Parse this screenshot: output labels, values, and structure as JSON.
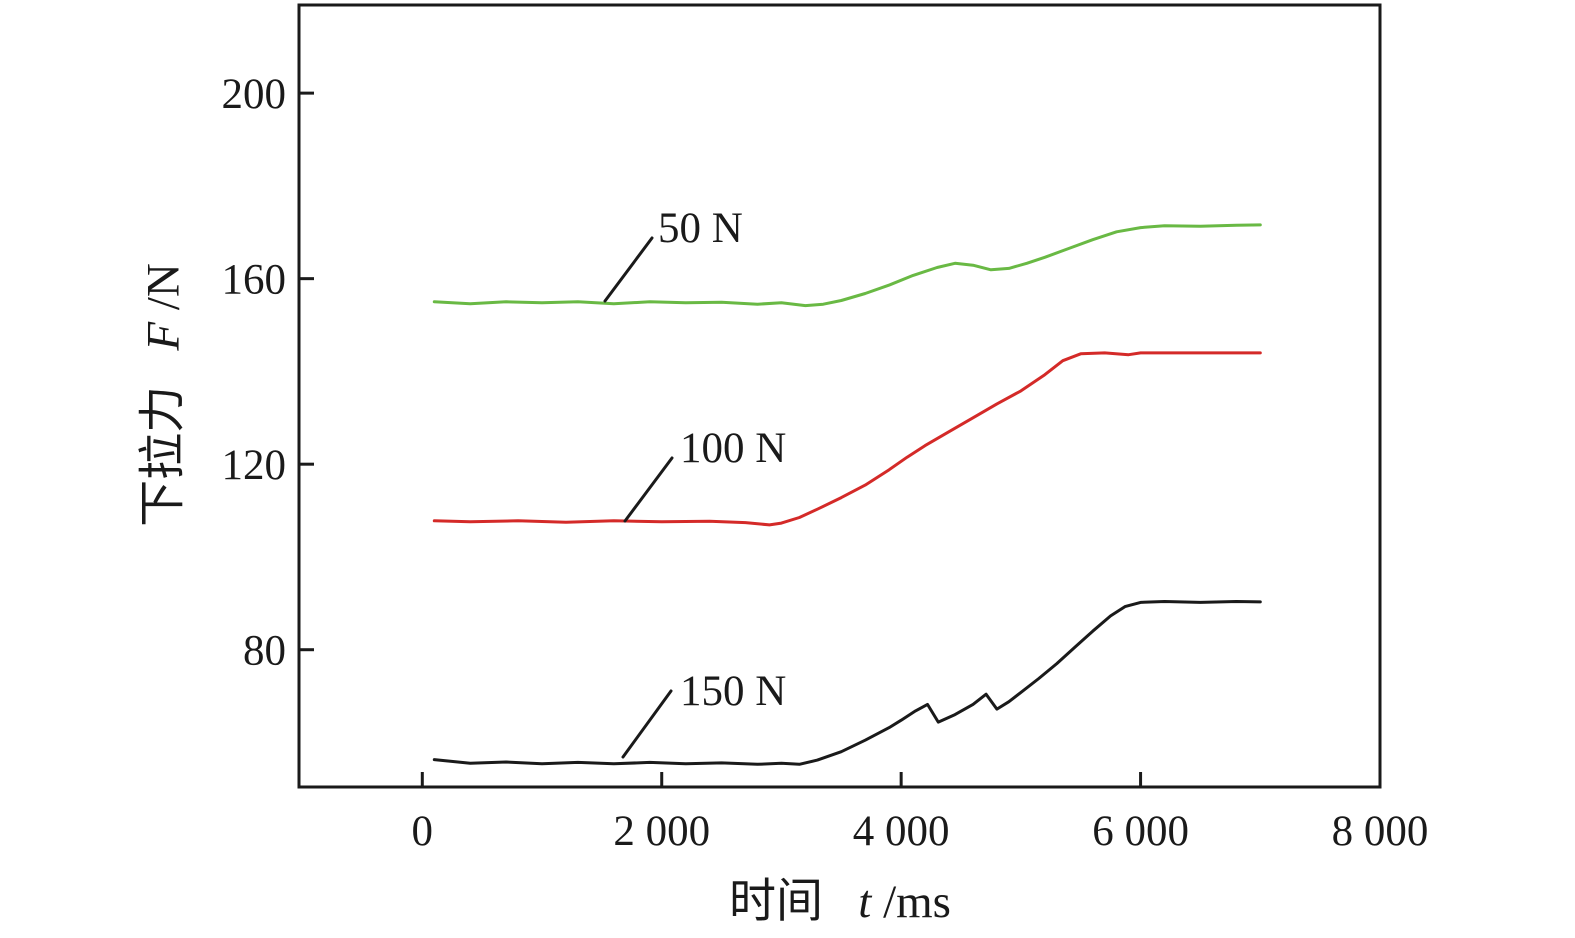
{
  "figure_title": "",
  "x_axis_title": {
    "cn": "时间",
    "var": "t",
    "unit": "/ms"
  },
  "y_axis_title": {
    "cn": "下拉力",
    "var": "F",
    "unit": "/N"
  },
  "colors": {
    "axis": "#1a1a1a",
    "green_series": "#69b944",
    "red_series": "#d42a28",
    "black_series": "#1a1a1a"
  },
  "chart_data": {
    "type": "line",
    "title": "",
    "xlabel": "时间 t/ms",
    "ylabel": "下拉力 F/N",
    "xlim": [
      -1030,
      8000
    ],
    "ylim": [
      50.4,
      219.0
    ],
    "grid": false,
    "legend_position": "inline-annotations",
    "x_ticks": [
      {
        "value": 0,
        "label": "0"
      },
      {
        "value": 2000,
        "label": "2 000"
      },
      {
        "value": 4000,
        "label": "4 000"
      },
      {
        "value": 6000,
        "label": "6 000"
      },
      {
        "value": 8000,
        "label": "8 000"
      }
    ],
    "y_ticks": [
      {
        "value": 80,
        "label": "80"
      },
      {
        "value": 120,
        "label": "120"
      },
      {
        "value": 160,
        "label": "160"
      },
      {
        "value": 200,
        "label": "200"
      }
    ],
    "series": [
      {
        "name": "50 N",
        "color": "#69b944",
        "points": [
          [
            100,
            155.0
          ],
          [
            400,
            154.6
          ],
          [
            700,
            155.0
          ],
          [
            1000,
            154.8
          ],
          [
            1300,
            155.0
          ],
          [
            1600,
            154.6
          ],
          [
            1900,
            155.0
          ],
          [
            2200,
            154.8
          ],
          [
            2500,
            154.9
          ],
          [
            2800,
            154.5
          ],
          [
            3000,
            154.8
          ],
          [
            3200,
            154.2
          ],
          [
            3350,
            154.5
          ],
          [
            3500,
            155.3
          ],
          [
            3700,
            156.8
          ],
          [
            3900,
            158.6
          ],
          [
            4100,
            160.7
          ],
          [
            4300,
            162.4
          ],
          [
            4450,
            163.3
          ],
          [
            4600,
            162.9
          ],
          [
            4750,
            161.9
          ],
          [
            4900,
            162.2
          ],
          [
            5050,
            163.3
          ],
          [
            5200,
            164.6
          ],
          [
            5400,
            166.5
          ],
          [
            5600,
            168.4
          ],
          [
            5800,
            170.1
          ],
          [
            6000,
            171.0
          ],
          [
            6200,
            171.4
          ],
          [
            6500,
            171.3
          ],
          [
            6800,
            171.5
          ],
          [
            7000,
            171.6
          ]
        ]
      },
      {
        "name": "100 N",
        "color": "#d42a28",
        "points": [
          [
            100,
            107.8
          ],
          [
            400,
            107.6
          ],
          [
            800,
            107.8
          ],
          [
            1200,
            107.5
          ],
          [
            1600,
            107.8
          ],
          [
            2000,
            107.6
          ],
          [
            2400,
            107.7
          ],
          [
            2700,
            107.4
          ],
          [
            2900,
            106.9
          ],
          [
            3000,
            107.3
          ],
          [
            3150,
            108.5
          ],
          [
            3300,
            110.3
          ],
          [
            3500,
            112.8
          ],
          [
            3700,
            115.5
          ],
          [
            3900,
            118.8
          ],
          [
            4050,
            121.5
          ],
          [
            4200,
            124.0
          ],
          [
            4400,
            127.0
          ],
          [
            4600,
            130.0
          ],
          [
            4800,
            133.0
          ],
          [
            5000,
            135.8
          ],
          [
            5200,
            139.3
          ],
          [
            5350,
            142.3
          ],
          [
            5500,
            143.8
          ],
          [
            5700,
            144.0
          ],
          [
            5900,
            143.6
          ],
          [
            6000,
            144.0
          ],
          [
            6300,
            144.0
          ],
          [
            6600,
            144.0
          ],
          [
            7000,
            144.0
          ]
        ]
      },
      {
        "name": "150 N",
        "color": "#1a1a1a",
        "points": [
          [
            100,
            56.3
          ],
          [
            400,
            55.5
          ],
          [
            700,
            55.8
          ],
          [
            1000,
            55.4
          ],
          [
            1300,
            55.7
          ],
          [
            1600,
            55.4
          ],
          [
            1900,
            55.7
          ],
          [
            2200,
            55.4
          ],
          [
            2500,
            55.6
          ],
          [
            2800,
            55.3
          ],
          [
            3000,
            55.5
          ],
          [
            3150,
            55.3
          ],
          [
            3300,
            56.2
          ],
          [
            3500,
            58.0
          ],
          [
            3700,
            60.5
          ],
          [
            3900,
            63.2
          ],
          [
            4000,
            64.8
          ],
          [
            4120,
            66.8
          ],
          [
            4220,
            68.2
          ],
          [
            4310,
            64.4
          ],
          [
            4450,
            66.0
          ],
          [
            4600,
            68.2
          ],
          [
            4710,
            70.4
          ],
          [
            4800,
            67.2
          ],
          [
            4900,
            68.8
          ],
          [
            5000,
            70.8
          ],
          [
            5150,
            73.8
          ],
          [
            5300,
            77.0
          ],
          [
            5450,
            80.5
          ],
          [
            5600,
            84.0
          ],
          [
            5750,
            87.3
          ],
          [
            5870,
            89.3
          ],
          [
            6000,
            90.2
          ],
          [
            6200,
            90.4
          ],
          [
            6500,
            90.2
          ],
          [
            6800,
            90.4
          ],
          [
            7000,
            90.3
          ]
        ]
      }
    ],
    "annotations": [
      {
        "text": "50 N",
        "points_to_series": "50 N"
      },
      {
        "text": "100 N",
        "points_to_series": "100 N"
      },
      {
        "text": "150 N",
        "points_to_series": "150 N"
      }
    ]
  }
}
